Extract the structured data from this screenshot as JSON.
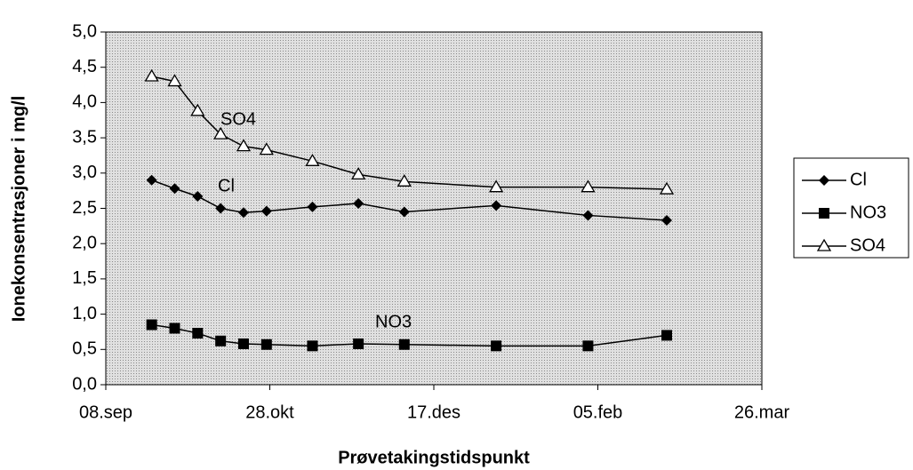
{
  "chart_data": {
    "type": "line",
    "ylabel": "Ionekonsentrasjoner i mg/l",
    "xlabel": "Prøvetakingstidspunkt",
    "annotations": [
      "SO4",
      "Cl",
      "NO3"
    ],
    "x": [
      14,
      21,
      28,
      35,
      42,
      49,
      63,
      77,
      91,
      119,
      147,
      171
    ],
    "series": [
      {
        "name": "Cl",
        "color": "#000000",
        "marker": "diamond",
        "values": [
          2.9,
          2.78,
          2.67,
          2.5,
          2.44,
          2.46,
          2.52,
          2.57,
          2.45,
          2.54,
          2.4,
          2.33
        ]
      },
      {
        "name": "NO3",
        "color": "#000000",
        "marker": "square",
        "values": [
          0.85,
          0.8,
          0.73,
          0.62,
          0.58,
          0.57,
          0.55,
          0.58,
          0.57,
          0.55,
          0.55,
          0.7
        ]
      },
      {
        "name": "SO4",
        "color": "#000000",
        "marker": "triangle-open",
        "values": [
          4.37,
          4.3,
          3.88,
          3.55,
          3.38,
          3.33,
          3.17,
          2.98,
          2.88,
          2.8,
          2.8,
          2.77
        ]
      }
    ],
    "xlim": [
      0,
      200
    ],
    "xticks": [
      {
        "value": 0,
        "label": "08.sep"
      },
      {
        "value": 50,
        "label": "28.okt"
      },
      {
        "value": 100,
        "label": "17.des"
      },
      {
        "value": 150,
        "label": "05.feb"
      },
      {
        "value": 200,
        "label": "26.mar"
      }
    ],
    "ylim": [
      0,
      5
    ],
    "yticks": [
      {
        "value": 0,
        "label": "0,0"
      },
      {
        "value": 0.5,
        "label": "0,5"
      },
      {
        "value": 1,
        "label": "1,0"
      },
      {
        "value": 1.5,
        "label": "1,5"
      },
      {
        "value": 2,
        "label": "2,0"
      },
      {
        "value": 2.5,
        "label": "2,5"
      },
      {
        "value": 3,
        "label": "3,0"
      },
      {
        "value": 3.5,
        "label": "3,5"
      },
      {
        "value": 4,
        "label": "4,0"
      },
      {
        "value": 4.5,
        "label": "4,5"
      },
      {
        "value": 5,
        "label": "5,0"
      }
    ],
    "legend": "right",
    "plot_background": "#cfcfcf"
  }
}
